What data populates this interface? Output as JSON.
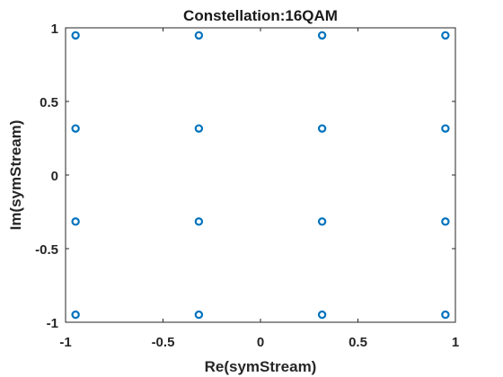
{
  "chart_data": {
    "type": "scatter",
    "title": "Constellation:16QAM",
    "xlabel": "Re(symStream)",
    "ylabel": "Im(symStream)",
    "xlim": [
      -1,
      1
    ],
    "ylim": [
      -1,
      1
    ],
    "xticks": [
      -1,
      -0.5,
      0,
      0.5,
      1
    ],
    "yticks": [
      -1,
      -0.5,
      0,
      0.5,
      1
    ],
    "xtick_labels": [
      "-1",
      "-0.5",
      "0",
      "0.5",
      "1"
    ],
    "ytick_labels": [
      "-1",
      "-0.5",
      "0",
      "0.5",
      "1"
    ],
    "grid": false,
    "marker": "circle",
    "color": "#0072BD",
    "points": [
      {
        "x": -0.9487,
        "y": 0.9487
      },
      {
        "x": -0.3162,
        "y": 0.9487
      },
      {
        "x": 0.3162,
        "y": 0.9487
      },
      {
        "x": 0.9487,
        "y": 0.9487
      },
      {
        "x": -0.9487,
        "y": 0.3162
      },
      {
        "x": -0.3162,
        "y": 0.3162
      },
      {
        "x": 0.3162,
        "y": 0.3162
      },
      {
        "x": 0.9487,
        "y": 0.3162
      },
      {
        "x": -0.9487,
        "y": -0.3162
      },
      {
        "x": -0.3162,
        "y": -0.3162
      },
      {
        "x": 0.3162,
        "y": -0.3162
      },
      {
        "x": 0.9487,
        "y": -0.3162
      },
      {
        "x": -0.9487,
        "y": -0.9487
      },
      {
        "x": -0.3162,
        "y": -0.9487
      },
      {
        "x": 0.3162,
        "y": -0.9487
      },
      {
        "x": 0.9487,
        "y": -0.9487
      }
    ]
  }
}
